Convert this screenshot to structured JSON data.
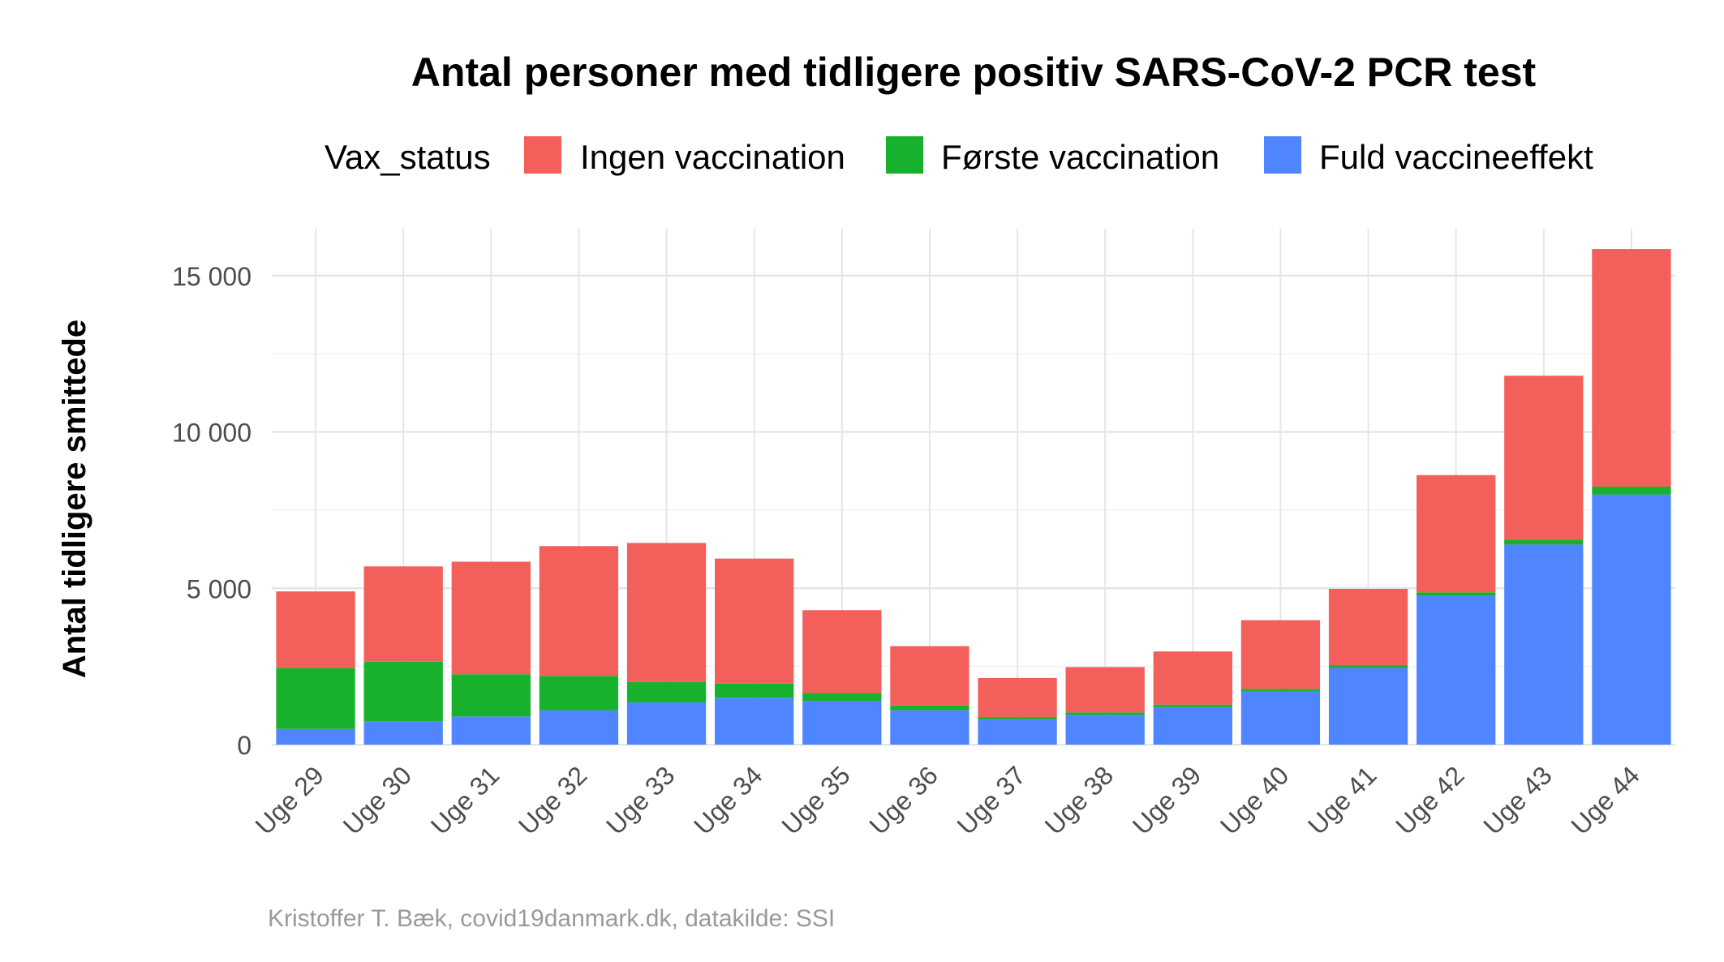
{
  "chart_data": {
    "type": "bar",
    "stacked": true,
    "title": "Antal personer med tidligere positiv SARS-CoV-2 PCR test",
    "legend_title": "Vax_status",
    "legend_position": "top",
    "ylabel": "Antal tidligere smittede",
    "xlabel": "",
    "ylim": [
      0,
      16500
    ],
    "yticks": [
      0,
      5000,
      10000,
      15000
    ],
    "ytick_labels": [
      "0",
      "5 000",
      "10 000",
      "15 000"
    ],
    "grid": true,
    "categories": [
      "Uge 29",
      "Uge 30",
      "Uge 31",
      "Uge 32",
      "Uge 33",
      "Uge 34",
      "Uge 35",
      "Uge 36",
      "Uge 37",
      "Uge 38",
      "Uge 39",
      "Uge 40",
      "Uge 41",
      "Uge 42",
      "Uge 43",
      "Uge 44"
    ],
    "series": [
      {
        "name": "Fuld vaccineeffekt",
        "color": "#4F86FF",
        "values": [
          500,
          750,
          900,
          1100,
          1350,
          1500,
          1400,
          1100,
          800,
          950,
          1200,
          1700,
          2450,
          4750,
          6400,
          8000
        ]
      },
      {
        "name": "Første vaccination",
        "color": "#18B12E",
        "values": [
          1950,
          1900,
          1350,
          1100,
          650,
          450,
          250,
          150,
          80,
          80,
          80,
          80,
          80,
          120,
          150,
          250
        ]
      },
      {
        "name": "Ingen vaccination",
        "color": "#F35F5A",
        "values": [
          2450,
          3050,
          3600,
          4150,
          4450,
          4000,
          2650,
          1900,
          1250,
          1450,
          1700,
          2200,
          2450,
          3750,
          5250,
          7600
        ]
      }
    ],
    "legend_order": [
      "Ingen vaccination",
      "Første vaccination",
      "Fuld vaccineeffekt"
    ],
    "caption": "Kristoffer T. Bæk, covid19danmark.dk, datakilde: SSI"
  }
}
